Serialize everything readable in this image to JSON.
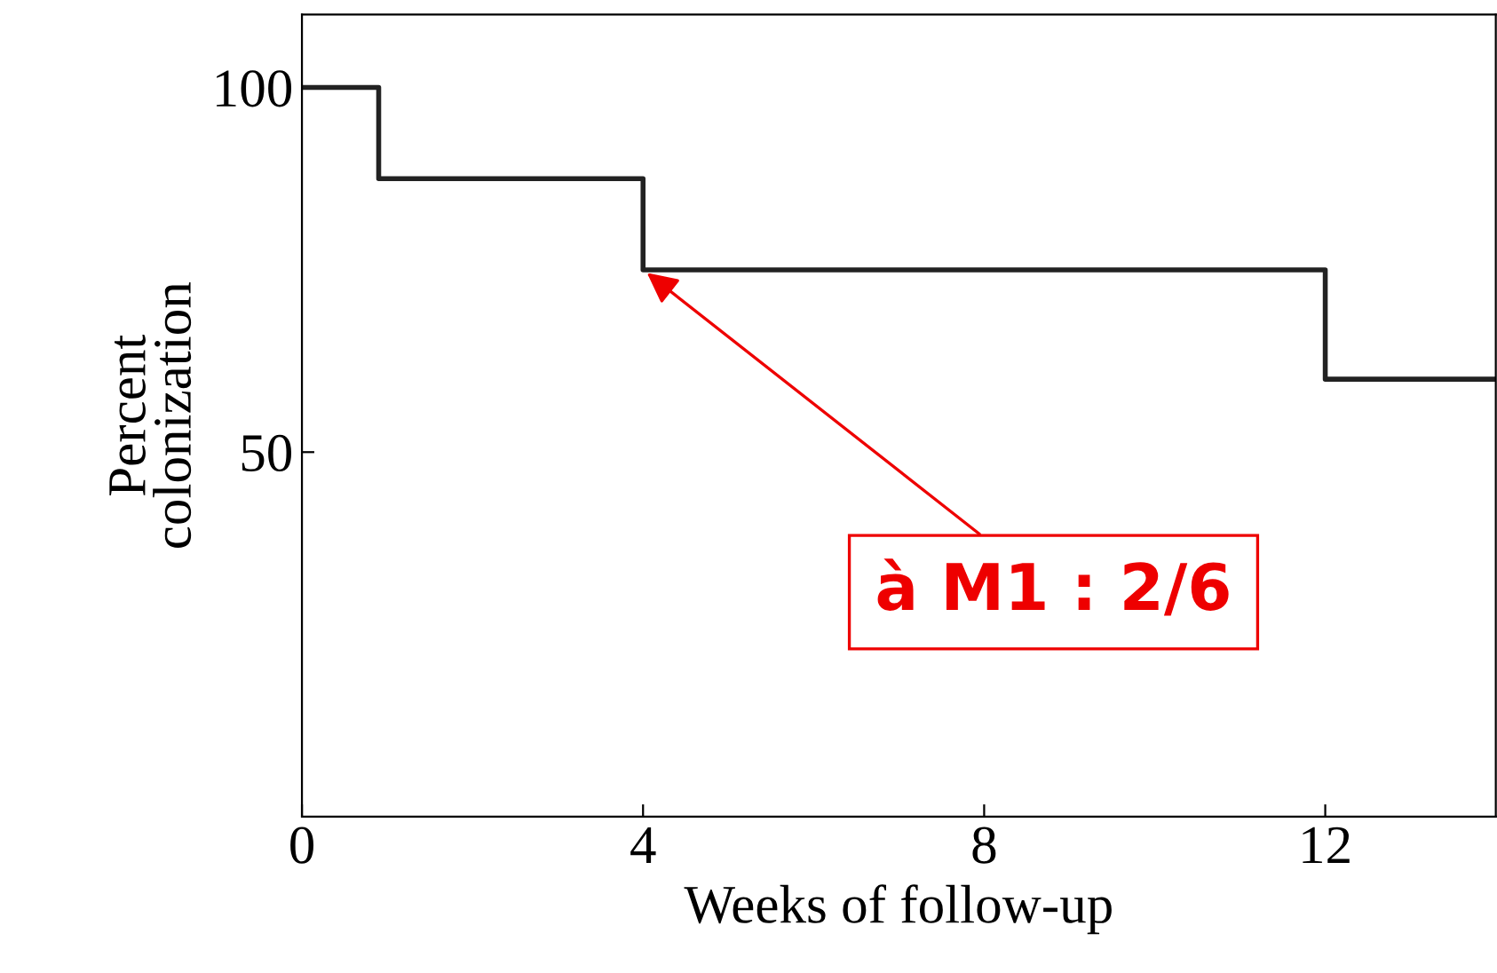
{
  "chart_data": {
    "type": "step",
    "xlabel": "Weeks of follow-up",
    "ylabel": "Percent\ncolonization",
    "series": [
      {
        "color": "#222222",
        "x": [
          0,
          0.9,
          4,
          12,
          14
        ],
        "values": [
          100,
          87.5,
          75,
          60,
          60
        ]
      }
    ],
    "xlim": [
      0,
      14
    ],
    "ylim": [
      0,
      110
    ],
    "xticks": [
      0,
      4,
      8,
      12
    ],
    "yticks": [
      50,
      100
    ],
    "grid": false,
    "annotations": [
      {
        "text": "à M1 : 2/6",
        "x": 4,
        "y": 75
      }
    ]
  }
}
